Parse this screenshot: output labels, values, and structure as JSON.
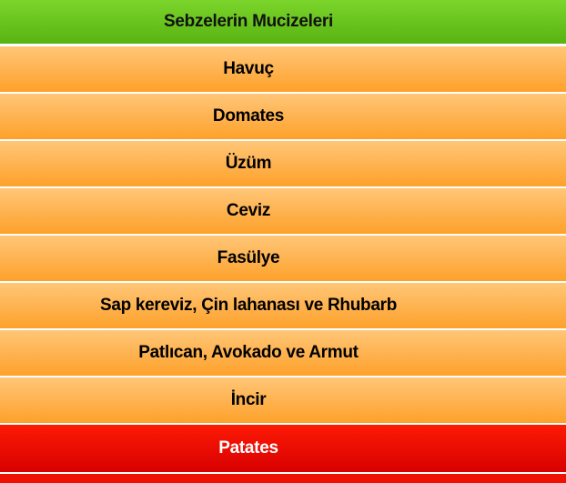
{
  "menu": {
    "title": "Sebzelerin Mucizeleri",
    "items": [
      {
        "label": "Havuç"
      },
      {
        "label": "Domates"
      },
      {
        "label": "Üzüm"
      },
      {
        "label": "Ceviz"
      },
      {
        "label": "Fasülye"
      },
      {
        "label": "Sap kereviz, Çin lahanası ve Rhubarb"
      },
      {
        "label": "Patlıcan, Avokado ve Armut"
      },
      {
        "label": "İncir"
      },
      {
        "label": "Patates",
        "active": true
      }
    ]
  },
  "colors": {
    "header": "#6cc41f",
    "item": "#feb04c",
    "active": "#ec0d02"
  }
}
